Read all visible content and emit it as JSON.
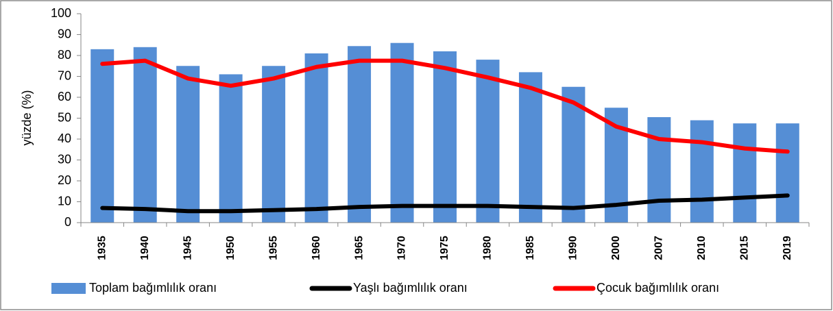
{
  "chart_data": {
    "type": "bar",
    "y_label": "yüzde  (%)",
    "categories": [
      "1935",
      "1940",
      "1945",
      "1950",
      "1955",
      "1960",
      "1965",
      "1970",
      "1975",
      "1980",
      "1985",
      "1990",
      "2000",
      "2007",
      "2010",
      "2015",
      "2019"
    ],
    "series": [
      {
        "name": "Toplam  bağımlılık  oranı",
        "type": "bar",
        "color": "#558ed5",
        "values": [
          83,
          84,
          75,
          71,
          75,
          81,
          84.5,
          86,
          82,
          78,
          72,
          65,
          55,
          50.5,
          49,
          47.5,
          47.5
        ]
      },
      {
        "name": "Yaşlı bağımlılık  oranı",
        "type": "line",
        "color": "#000000",
        "values": [
          7,
          6.5,
          5.5,
          5.5,
          6,
          6.5,
          7.5,
          8,
          8,
          8,
          7.5,
          7,
          8.5,
          10.5,
          11,
          12,
          13
        ]
      },
      {
        "name": "Çocuk bağımlılık oranı",
        "type": "line",
        "color": "#ff0000",
        "values": [
          76,
          77.5,
          69,
          65.5,
          69,
          74.5,
          77.5,
          77.5,
          74,
          69.5,
          64.5,
          57.5,
          46,
          40,
          38.5,
          35.5,
          34
        ]
      }
    ],
    "ylim": [
      0,
      100
    ],
    "yticks": [
      0,
      10,
      20,
      30,
      40,
      50,
      60,
      70,
      80,
      90,
      100
    ]
  }
}
